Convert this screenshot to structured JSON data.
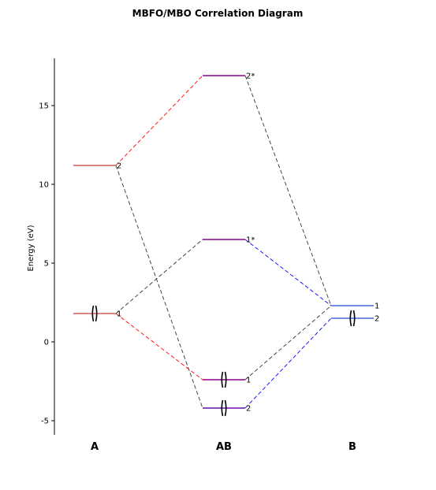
{
  "chart_data": {
    "type": "correlation-diagram",
    "title": "MBFO/MBO Correlation Diagram",
    "ylabel": "Energy (eV)",
    "ylim": [
      -5.9,
      18
    ],
    "yticks": [
      -5,
      0,
      5,
      10,
      15
    ],
    "columns": [
      {
        "id": "A",
        "label": "A"
      },
      {
        "id": "AB",
        "label": "AB"
      },
      {
        "id": "B",
        "label": "B"
      }
    ],
    "colors": {
      "A": "#cd5c5c",
      "AB": "#8b008b",
      "AB_low": "#6a0dad",
      "B": "#4169e1",
      "link_A": "#ff0000",
      "link_B": "#0000ff",
      "link_other": "#333333"
    },
    "levels": [
      {
        "column": "A",
        "label": "1",
        "energy": 1.8,
        "color": "#cd5c5c",
        "electrons": 2
      },
      {
        "column": "A",
        "label": "2",
        "energy": 11.2,
        "color": "#cd5c5c",
        "electrons": 0
      },
      {
        "column": "AB",
        "label": "2",
        "energy": -4.2,
        "color": "#6a0dad",
        "electrons": 2
      },
      {
        "column": "AB",
        "label": "1",
        "energy": -2.4,
        "color": "#8b008b",
        "electrons": 2
      },
      {
        "column": "AB",
        "label": "1*",
        "energy": 6.5,
        "color": "#8b008b",
        "electrons": 0
      },
      {
        "column": "AB",
        "label": "2*",
        "energy": 16.9,
        "color": "#8b008b",
        "electrons": 0
      },
      {
        "column": "B",
        "label": "2",
        "energy": 1.5,
        "color": "#4169e1",
        "electrons": 2
      },
      {
        "column": "B",
        "label": "1",
        "energy": 2.3,
        "color": "#4169e1",
        "electrons": 0
      }
    ],
    "connections": [
      {
        "from": {
          "column": "A",
          "label": "2"
        },
        "to": {
          "column": "AB",
          "label": "2*"
        },
        "color": "#ff0000"
      },
      {
        "from": {
          "column": "A",
          "label": "2"
        },
        "to": {
          "column": "AB",
          "label": "2"
        },
        "color": "#333333"
      },
      {
        "from": {
          "column": "A",
          "label": "1"
        },
        "to": {
          "column": "AB",
          "label": "1*"
        },
        "color": "#333333"
      },
      {
        "from": {
          "column": "A",
          "label": "1"
        },
        "to": {
          "column": "AB",
          "label": "1"
        },
        "color": "#ff0000"
      },
      {
        "from": {
          "column": "AB",
          "label": "2*"
        },
        "to": {
          "column": "B",
          "label": "1"
        },
        "color": "#333333"
      },
      {
        "from": {
          "column": "AB",
          "label": "1*"
        },
        "to": {
          "column": "B",
          "label": "1"
        },
        "color": "#0000ff"
      },
      {
        "from": {
          "column": "AB",
          "label": "1"
        },
        "to": {
          "column": "B",
          "label": "1"
        },
        "color": "#333333"
      },
      {
        "from": {
          "column": "AB",
          "label": "2"
        },
        "to": {
          "column": "B",
          "label": "2"
        },
        "color": "#0000ff"
      }
    ]
  }
}
